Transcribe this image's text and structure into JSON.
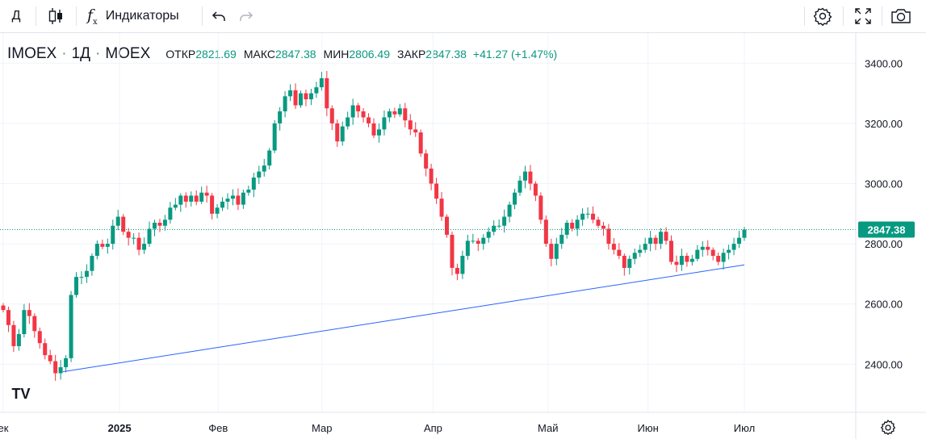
{
  "toolbar": {
    "interval_label": "Д",
    "indicators_label": "Индикаторы"
  },
  "legend": {
    "symbol": "IMOEX",
    "interval": "1Д",
    "exchange": "MOEX",
    "open_label": "ОТКР",
    "open": "2821.69",
    "high_label": "МАКС",
    "high": "2847.38",
    "low_label": "МИН",
    "low": "2806.49",
    "close_label": "ЗАКР",
    "close": "2847.38",
    "change": "+41.27 (+1.47%)"
  },
  "colors": {
    "up": "#089981",
    "down": "#f23645",
    "trend": "#2962ff",
    "last": "#089981"
  },
  "chart_data": {
    "type": "candlestick",
    "title": "IMOEX · 1Д · MOEX",
    "ylim": [
      2240,
      3500
    ],
    "y_ticks": [
      "2400.00",
      "2600.00",
      "2800.00",
      "3000.00",
      "3200.00",
      "3400.00"
    ],
    "x_ticks": [
      {
        "label": "ек",
        "bold": false
      },
      {
        "label": "2025",
        "bold": true
      },
      {
        "label": "Фев",
        "bold": false
      },
      {
        "label": "Мар",
        "bold": false
      },
      {
        "label": "Апр",
        "bold": false
      },
      {
        "label": "Май",
        "bold": false
      },
      {
        "label": "Июн",
        "bold": false
      },
      {
        "label": "Июл",
        "bold": false
      }
    ],
    "last_price": "2847.38",
    "trendline": {
      "from": [
        0.0,
        2375
      ],
      "to": [
        0.82,
        2730
      ]
    },
    "closes": [
      2580,
      2530,
      2460,
      2500,
      2580,
      2560,
      2510,
      2470,
      2430,
      2410,
      2370,
      2390,
      2420,
      2630,
      2690,
      2690,
      2710,
      2760,
      2800,
      2790,
      2800,
      2860,
      2890,
      2840,
      2820,
      2820,
      2780,
      2800,
      2850,
      2870,
      2860,
      2880,
      2920,
      2930,
      2960,
      2940,
      2960,
      2940,
      2970,
      2960,
      2900,
      2920,
      2940,
      2950,
      2960,
      2930,
      2970,
      2980,
      3020,
      3040,
      3060,
      3110,
      3200,
      3240,
      3290,
      3310,
      3260,
      3300,
      3280,
      3300,
      3320,
      3350,
      3250,
      3200,
      3140,
      3190,
      3220,
      3260,
      3240,
      3220,
      3200,
      3160,
      3180,
      3220,
      3240,
      3230,
      3250,
      3210,
      3180,
      3170,
      3100,
      3050,
      3000,
      2950,
      2890,
      2830,
      2720,
      2700,
      2760,
      2810,
      2810,
      2800,
      2820,
      2840,
      2860,
      2860,
      2890,
      2930,
      2970,
      3010,
      3040,
      3000,
      2960,
      2880,
      2800,
      2750,
      2800,
      2830,
      2870,
      2850,
      2880,
      2900,
      2900,
      2880,
      2860,
      2850,
      2800,
      2780,
      2760,
      2720,
      2750,
      2770,
      2780,
      2800,
      2820,
      2800,
      2840,
      2810,
      2740,
      2730,
      2760,
      2740,
      2750,
      2780,
      2790,
      2780,
      2760,
      2740,
      2770,
      2780,
      2800,
      2820,
      2847
    ]
  }
}
